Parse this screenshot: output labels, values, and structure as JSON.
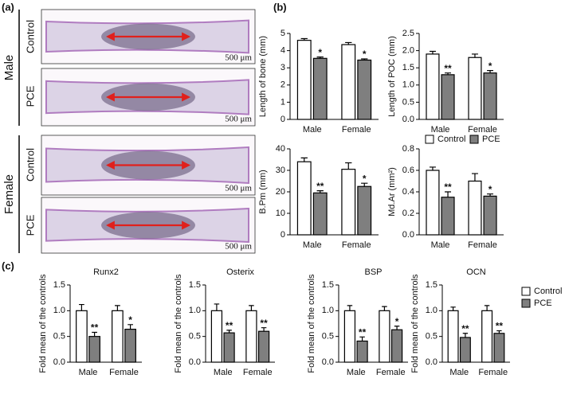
{
  "figure": {
    "panel_labels": [
      "(a)",
      "(b)",
      "(c)"
    ],
    "sexes": [
      "Male",
      "Female"
    ],
    "groups": [
      "Control",
      "PCE",
      "Control",
      "PCE"
    ],
    "scale_bars": [
      "500 μm",
      "500 μm",
      "500 μm",
      "500 μm"
    ]
  },
  "chart_data": [
    {
      "type": "bar",
      "y_label": "Length of bone (mm)",
      "categories": [
        "Male",
        "Female"
      ],
      "ylim": [
        0,
        5
      ],
      "yticks": [
        0,
        1,
        2,
        3,
        4,
        5
      ],
      "series": [
        {
          "color": "#ffffff",
          "values": [
            4.6,
            4.35
          ],
          "errors": [
            0.1,
            0.12
          ]
        },
        {
          "color": "#7f7f7f",
          "values": [
            3.55,
            3.45
          ],
          "errors": [
            0.08,
            0.07
          ],
          "annotations": [
            "*",
            "*"
          ]
        }
      ]
    },
    {
      "type": "bar",
      "y_label": "Length of POC (mm)",
      "categories": [
        "Male",
        "Female"
      ],
      "ylim": [
        0,
        2.5
      ],
      "yticks": [
        {
          "value": 0,
          "label": "0.0"
        },
        0.5,
        {
          "value": 1,
          "label": "1.0"
        },
        1.5,
        {
          "value": 2,
          "label": "2.0"
        },
        2.5
      ],
      "series": [
        {
          "color": "#ffffff",
          "values": [
            1.9,
            1.8
          ],
          "errors": [
            0.08,
            0.1
          ]
        },
        {
          "color": "#7f7f7f",
          "values": [
            1.3,
            1.35
          ],
          "errors": [
            0.05,
            0.07
          ],
          "annotations": [
            "**",
            "*"
          ]
        }
      ]
    },
    {
      "type": "bar",
      "y_label": "B.Pm (mm)",
      "categories": [
        "Male",
        "Female"
      ],
      "ylim": [
        0,
        40
      ],
      "yticks": [
        0,
        10,
        20,
        30,
        40
      ],
      "series": [
        {
          "color": "#ffffff",
          "values": [
            34,
            30.5
          ],
          "errors": [
            1.8,
            3
          ]
        },
        {
          "color": "#7f7f7f",
          "values": [
            19.5,
            22.5
          ],
          "errors": [
            1,
            1.5
          ],
          "annotations": [
            "**",
            "*"
          ]
        }
      ]
    },
    {
      "type": "bar",
      "y_label": "Md.Ar (mm²)",
      "categories": [
        "Male",
        "Female"
      ],
      "ylim": [
        0,
        0.8
      ],
      "yticks": [
        {
          "value": 0,
          "label": "0.0"
        },
        0.2,
        0.4,
        0.6,
        0.8
      ],
      "legend": "top",
      "series": [
        {
          "name": "Control",
          "color": "#ffffff",
          "values": [
            0.6,
            0.5
          ],
          "errors": [
            0.03,
            0.07
          ]
        },
        {
          "name": "PCE",
          "color": "#7f7f7f",
          "values": [
            0.35,
            0.36
          ],
          "errors": [
            0.05,
            0.02
          ],
          "annotations": [
            "**",
            "*"
          ]
        }
      ]
    },
    {
      "type": "bar",
      "title": "Runx2",
      "y_label": "Fold mean of the controls",
      "categories": [
        "Male",
        "Female"
      ],
      "ylim": [
        0,
        1.5
      ],
      "yticks": [
        {
          "value": 0,
          "label": "0.0"
        },
        0.5,
        {
          "value": 1,
          "label": "1.0"
        },
        1.5
      ],
      "series": [
        {
          "color": "#ffffff",
          "values": [
            1.0,
            1.0
          ],
          "errors": [
            0.12,
            0.1
          ]
        },
        {
          "color": "#7f7f7f",
          "values": [
            0.5,
            0.64
          ],
          "errors": [
            0.08,
            0.09
          ],
          "annotations": [
            "**",
            "*"
          ]
        }
      ]
    },
    {
      "type": "bar",
      "title": "Osterix",
      "y_label": "Fold mean of the controls",
      "categories": [
        "Male",
        "Female"
      ],
      "ylim": [
        0,
        1.5
      ],
      "yticks": [
        {
          "value": 0,
          "label": "0.0"
        },
        0.5,
        {
          "value": 1,
          "label": "1.0"
        },
        1.5
      ],
      "series": [
        {
          "color": "#ffffff",
          "values": [
            1.0,
            1.0
          ],
          "errors": [
            0.13,
            0.1
          ]
        },
        {
          "color": "#7f7f7f",
          "values": [
            0.57,
            0.6
          ],
          "errors": [
            0.05,
            0.07
          ],
          "annotations": [
            "**",
            "**"
          ]
        }
      ]
    },
    {
      "type": "bar",
      "title": "BSP",
      "y_label": "Fold mean of the controls",
      "categories": [
        "Male",
        "Female"
      ],
      "ylim": [
        0,
        1.5
      ],
      "yticks": [
        {
          "value": 0,
          "label": "0.0"
        },
        0.5,
        {
          "value": 1,
          "label": "1.0"
        },
        1.5
      ],
      "series": [
        {
          "color": "#ffffff",
          "values": [
            1.0,
            1.0
          ],
          "errors": [
            0.1,
            0.08
          ]
        },
        {
          "color": "#7f7f7f",
          "values": [
            0.41,
            0.63
          ],
          "errors": [
            0.08,
            0.07
          ],
          "annotations": [
            "**",
            "*"
          ]
        }
      ]
    },
    {
      "type": "bar",
      "title": "OCN",
      "y_label": "Fold mean of the controls",
      "categories": [
        "Male",
        "Female"
      ],
      "ylim": [
        0,
        1.5
      ],
      "yticks": [
        {
          "value": 0,
          "label": "0.0"
        },
        0.5,
        {
          "value": 1,
          "label": "1.0"
        },
        1.5
      ],
      "legend": "right",
      "series": [
        {
          "name": "Control",
          "color": "#ffffff",
          "values": [
            1.0,
            1.0
          ],
          "errors": [
            0.07,
            0.1
          ]
        },
        {
          "name": "PCE",
          "color": "#7f7f7f",
          "values": [
            0.48,
            0.56
          ],
          "errors": [
            0.08,
            0.05
          ],
          "annotations": [
            "**",
            "**"
          ]
        }
      ]
    }
  ]
}
